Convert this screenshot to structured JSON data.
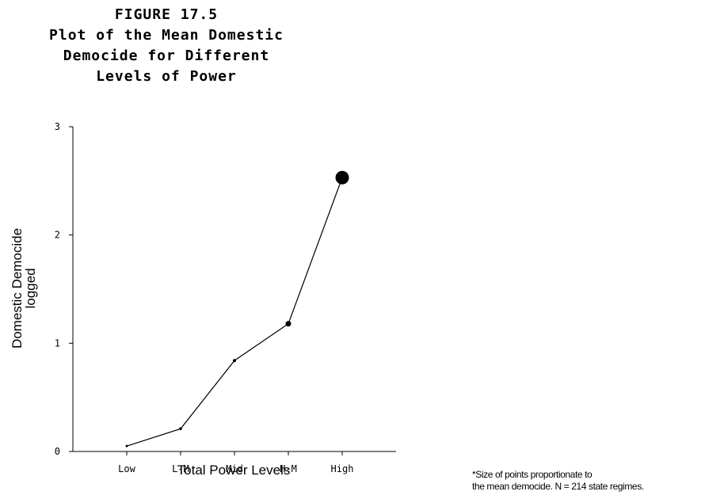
{
  "figure": {
    "title_lines": [
      "FIGURE 17.5",
      "Plot of the Mean Domestic",
      "Democide for Different",
      "Levels of Power"
    ],
    "footnote_lines": [
      "*Size of points proportionate to",
      "the mean democide. N = 214 state regimes."
    ]
  },
  "chart_data": {
    "type": "line",
    "categories": [
      "Low",
      "L-M",
      "Mid",
      "H-M",
      "High"
    ],
    "series": [
      {
        "values": [
          0.05,
          0.21,
          0.84,
          1.18,
          2.53
        ],
        "marker_size": [
          1.5,
          1.8,
          2.0,
          3.5,
          8.5
        ]
      }
    ],
    "xlabel": "Total Power Levels",
    "ylabel": [
      "Domestic Democide",
      "logged"
    ],
    "ylim": [
      0,
      3
    ],
    "yticks": [
      0,
      1,
      2,
      3
    ],
    "grid": false,
    "colors": {
      "line": "#000000",
      "marker": "#000000",
      "axis": "#000000"
    }
  }
}
